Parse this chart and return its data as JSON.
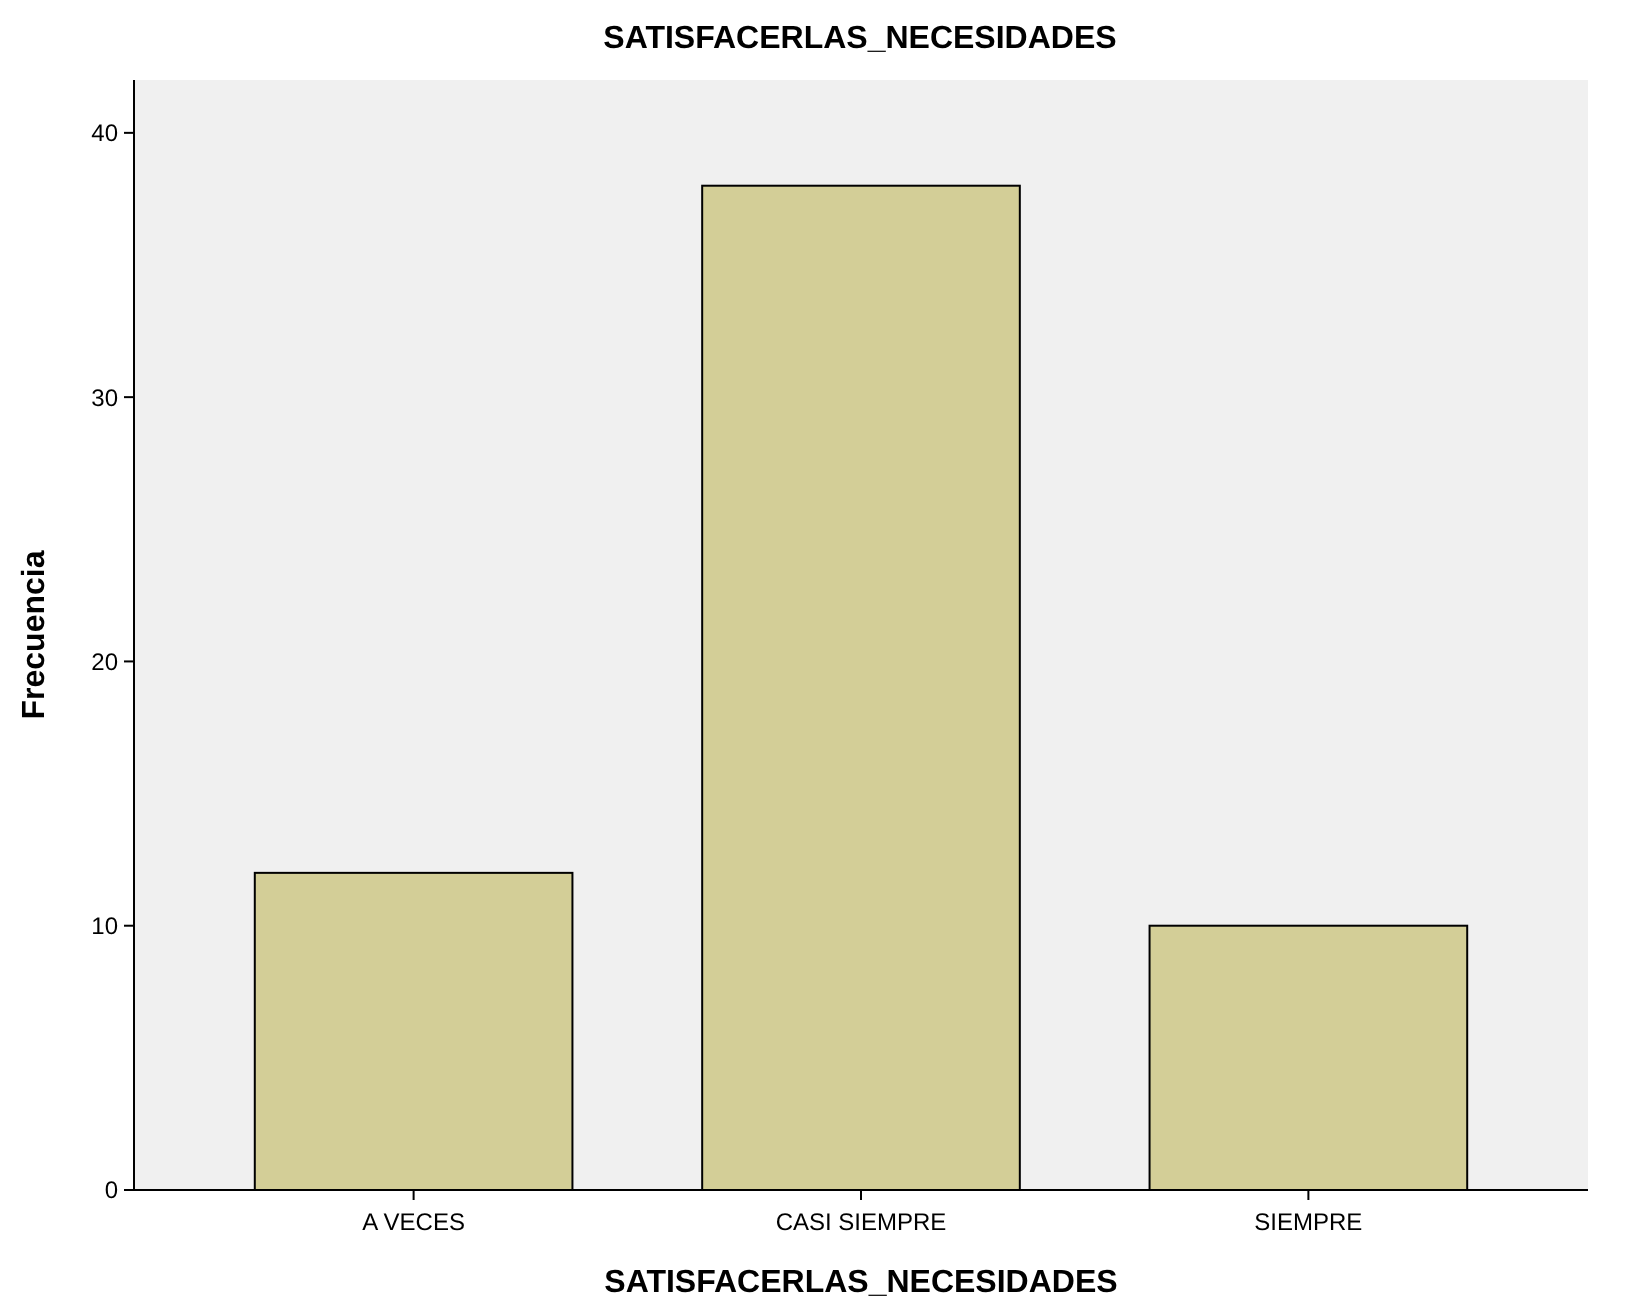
{
  "chart_data": {
    "type": "bar",
    "title": "SATISFACERLAS_NECESIDADES",
    "xlabel": "SATISFACERLAS_NECESIDADES",
    "ylabel": "Frecuencia",
    "categories": [
      "A VECES",
      "CASI SIEMPRE",
      "SIEMPRE"
    ],
    "values": [
      12,
      38,
      10
    ],
    "color": "#d3ce97",
    "ylim": [
      0,
      42
    ],
    "yticks": [
      0,
      10,
      20,
      30,
      40
    ],
    "grid": false
  }
}
